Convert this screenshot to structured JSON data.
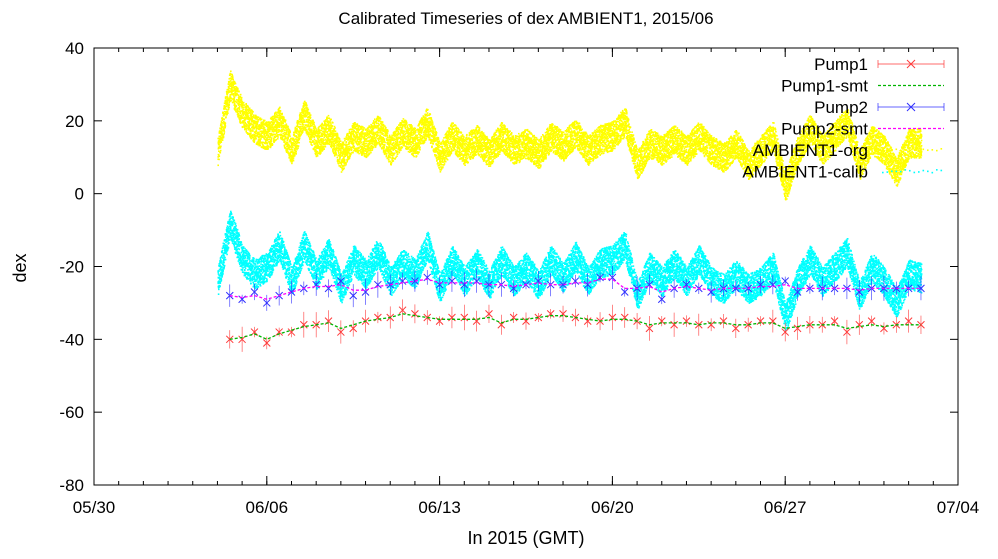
{
  "chart_data": {
    "type": "scatter",
    "title": "Calibrated Timeseries of dex AMBIENT1, 2015/06",
    "xlabel": "In 2015 (GMT)",
    "ylabel": "dex",
    "xlim": [
      "05/30",
      "07/04"
    ],
    "ylim": [
      -80,
      40
    ],
    "x_ticks": [
      "05/30",
      "06/06",
      "06/13",
      "06/20",
      "06/27",
      "07/04"
    ],
    "y_ticks": [
      "40",
      "20",
      "0",
      "-20",
      "-40",
      "-60",
      "-80"
    ],
    "legend_position": "top-right",
    "series": [
      {
        "name": "Pump1",
        "color": "#ff3a3a",
        "marker": "x",
        "errorbars": true,
        "x": [
          "06/04 12:00",
          "06/05 00:00",
          "06/05 12:00",
          "06/06 00:00",
          "06/06 12:00",
          "06/07 00:00",
          "06/07 12:00",
          "06/08 00:00",
          "06/08 12:00",
          "06/09 00:00",
          "06/09 12:00",
          "06/10 00:00",
          "06/10 12:00",
          "06/11 00:00",
          "06/11 12:00",
          "06/12 00:00",
          "06/12 12:00",
          "06/13 00:00",
          "06/13 12:00",
          "06/14 00:00",
          "06/14 12:00",
          "06/15 00:00",
          "06/15 12:00",
          "06/16 00:00",
          "06/16 12:00",
          "06/17 00:00",
          "06/17 12:00",
          "06/18 00:00",
          "06/18 12:00",
          "06/19 00:00",
          "06/19 12:00",
          "06/20 00:00",
          "06/20 12:00",
          "06/21 00:00",
          "06/21 12:00",
          "06/22 00:00",
          "06/22 12:00",
          "06/23 00:00",
          "06/23 12:00",
          "06/24 00:00",
          "06/24 12:00",
          "06/25 00:00",
          "06/25 12:00",
          "06/26 00:00",
          "06/26 12:00",
          "06/27 00:00",
          "06/27 12:00",
          "06/28 00:00",
          "06/28 12:00",
          "06/29 00:00",
          "06/29 12:00",
          "06/30 00:00",
          "06/30 12:00",
          "07/01 00:00",
          "07/01 12:00",
          "07/02 00:00",
          "07/02 12:00"
        ],
        "y": [
          -40,
          -40,
          -38,
          -41,
          -38,
          -38,
          -36,
          -36,
          -35,
          -38,
          -37,
          -35,
          -34,
          -34,
          -32,
          -33,
          -34,
          -35,
          -34,
          -34,
          -35,
          -33,
          -36,
          -34,
          -35,
          -34,
          -33,
          -33,
          -34,
          -35,
          -35,
          -34,
          -34,
          -35,
          -37,
          -35,
          -36,
          -35,
          -36,
          -36,
          -35,
          -37,
          -36,
          -35,
          -35,
          -38,
          -37,
          -36,
          -36,
          -35,
          -38,
          -36,
          -35,
          -37,
          -36,
          -35,
          -36
        ]
      },
      {
        "name": "Pump1-smt",
        "color": "#00b400",
        "dashed": true,
        "x": [
          "06/04 12:00",
          "06/05 00:00",
          "06/05 12:00",
          "06/06 00:00",
          "06/06 12:00",
          "06/07 00:00",
          "06/07 12:00",
          "06/08 00:00",
          "06/08 12:00",
          "06/09 00:00",
          "06/09 12:00",
          "06/10 00:00",
          "06/10 12:00",
          "06/11 00:00",
          "06/11 12:00",
          "06/12 00:00",
          "06/12 12:00",
          "06/13 00:00",
          "06/13 12:00",
          "06/14 00:00",
          "06/14 12:00",
          "06/15 00:00",
          "06/15 12:00",
          "06/16 00:00",
          "06/16 12:00",
          "06/17 00:00",
          "06/17 12:00",
          "06/18 00:00",
          "06/18 12:00",
          "06/19 00:00",
          "06/19 12:00",
          "06/20 00:00",
          "06/20 12:00",
          "06/21 00:00",
          "06/21 12:00",
          "06/22 00:00",
          "06/22 12:00",
          "06/23 00:00",
          "06/23 12:00",
          "06/24 00:00",
          "06/24 12:00",
          "06/25 00:00",
          "06/25 12:00",
          "06/26 00:00",
          "06/26 12:00",
          "06/27 00:00",
          "06/27 12:00",
          "06/28 00:00",
          "06/28 12:00",
          "06/29 00:00",
          "06/29 12:00",
          "06/30 00:00",
          "06/30 12:00",
          "07/01 00:00",
          "07/01 12:00",
          "07/02 00:00",
          "07/02 12:00"
        ],
        "y": [
          -40,
          -39.5,
          -38.5,
          -40,
          -38.5,
          -37.5,
          -36.5,
          -36,
          -35.5,
          -37,
          -36,
          -35,
          -34.5,
          -34,
          -33,
          -33.5,
          -34,
          -34.5,
          -34.5,
          -34.5,
          -34.5,
          -34,
          -35.5,
          -34.5,
          -34.5,
          -34,
          -33.5,
          -33.5,
          -34,
          -34.5,
          -35,
          -34.5,
          -34.5,
          -35,
          -36,
          -35.5,
          -35.5,
          -35.5,
          -36,
          -35.5,
          -35.5,
          -36,
          -36,
          -35.5,
          -35.5,
          -37,
          -36.5,
          -36,
          -36,
          -36,
          -37,
          -36.5,
          -36,
          -36.5,
          -36,
          -36,
          -36
        ]
      },
      {
        "name": "Pump2",
        "color": "#3030ff",
        "marker": "x",
        "errorbars": true,
        "x": [
          "06/04 12:00",
          "06/05 00:00",
          "06/05 12:00",
          "06/06 00:00",
          "06/06 12:00",
          "06/07 00:00",
          "06/07 12:00",
          "06/08 00:00",
          "06/08 12:00",
          "06/09 00:00",
          "06/09 12:00",
          "06/10 00:00",
          "06/10 12:00",
          "06/11 00:00",
          "06/11 12:00",
          "06/12 00:00",
          "06/12 12:00",
          "06/13 00:00",
          "06/13 12:00",
          "06/14 00:00",
          "06/14 12:00",
          "06/15 00:00",
          "06/15 12:00",
          "06/16 00:00",
          "06/16 12:00",
          "06/17 00:00",
          "06/17 12:00",
          "06/18 00:00",
          "06/18 12:00",
          "06/19 00:00",
          "06/19 12:00",
          "06/20 00:00",
          "06/20 12:00",
          "06/21 00:00",
          "06/21 12:00",
          "06/22 00:00",
          "06/22 12:00",
          "06/23 00:00",
          "06/23 12:00",
          "06/24 00:00",
          "06/24 12:00",
          "06/25 00:00",
          "06/25 12:00",
          "06/26 00:00",
          "06/26 12:00",
          "06/27 00:00",
          "06/27 12:00",
          "06/28 00:00",
          "06/28 12:00",
          "06/29 00:00",
          "06/29 12:00",
          "06/30 00:00",
          "06/30 12:00",
          "07/01 00:00",
          "07/01 12:00",
          "07/02 00:00",
          "07/02 12:00"
        ],
        "y": [
          -28,
          -29,
          -27,
          -30,
          -28,
          -27,
          -26,
          -25,
          -26,
          -24,
          -28,
          -27,
          -25,
          -25,
          -24,
          -24,
          -23,
          -25,
          -24,
          -25,
          -24,
          -25,
          -25,
          -26,
          -25,
          -24,
          -25,
          -25,
          -24,
          -25,
          -23,
          -23,
          -27,
          -26,
          -25,
          -29,
          -26,
          -25,
          -26,
          -27,
          -26,
          -26,
          -26,
          -25,
          -25,
          -24,
          -27,
          -26,
          -26,
          -26,
          -26,
          -27,
          -26,
          -26,
          -26,
          -26,
          -26
        ]
      },
      {
        "name": "Pump2-smt",
        "color": "#ff00ff",
        "dashed": true,
        "x": [
          "06/04 12:00",
          "06/05 00:00",
          "06/05 12:00",
          "06/06 00:00",
          "06/06 12:00",
          "06/07 00:00",
          "06/07 12:00",
          "06/08 00:00",
          "06/08 12:00",
          "06/09 00:00",
          "06/09 12:00",
          "06/10 00:00",
          "06/10 12:00",
          "06/11 00:00",
          "06/11 12:00",
          "06/12 00:00",
          "06/12 12:00",
          "06/13 00:00",
          "06/13 12:00",
          "06/14 00:00",
          "06/14 12:00",
          "06/15 00:00",
          "06/15 12:00",
          "06/16 00:00",
          "06/16 12:00",
          "06/17 00:00",
          "06/17 12:00",
          "06/18 00:00",
          "06/18 12:00",
          "06/19 00:00",
          "06/19 12:00",
          "06/20 00:00",
          "06/20 12:00",
          "06/21 00:00",
          "06/21 12:00",
          "06/22 00:00",
          "06/22 12:00",
          "06/23 00:00",
          "06/23 12:00",
          "06/24 00:00",
          "06/24 12:00",
          "06/25 00:00",
          "06/25 12:00",
          "06/26 00:00",
          "06/26 12:00",
          "06/27 00:00",
          "06/27 12:00",
          "06/28 00:00",
          "06/28 12:00",
          "06/29 00:00",
          "06/29 12:00",
          "06/30 00:00",
          "06/30 12:00",
          "07/01 00:00",
          "07/01 12:00",
          "07/02 00:00",
          "07/02 12:00"
        ],
        "y": [
          -28,
          -28.5,
          -28,
          -29,
          -28,
          -27,
          -26,
          -25.5,
          -25.5,
          -25,
          -26.5,
          -26.5,
          -25.5,
          -25,
          -24.5,
          -24,
          -23.5,
          -24.5,
          -24.5,
          -24.5,
          -24.5,
          -25,
          -25,
          -25.5,
          -25,
          -24.5,
          -25,
          -25,
          -24.5,
          -24.5,
          -23.5,
          -23.5,
          -26,
          -26,
          -25.5,
          -27,
          -26,
          -25.5,
          -26,
          -26.5,
          -26,
          -26,
          -26,
          -25.5,
          -25.5,
          -25,
          -26,
          -26,
          -26,
          -26,
          -26,
          -26.5,
          -26,
          -26,
          -26,
          -26,
          -26
        ]
      },
      {
        "name": "AMBIENT1-org",
        "color": "#ffff00",
        "marker": "point",
        "x": [
          "06/04",
          "06/04 12:00",
          "06/05",
          "06/05 12:00",
          "06/06",
          "06/06 12:00",
          "06/07",
          "06/07 12:00",
          "06/08",
          "06/08 12:00",
          "06/09",
          "06/09 12:00",
          "06/10",
          "06/10 12:00",
          "06/11",
          "06/11 12:00",
          "06/12",
          "06/12 12:00",
          "06/13",
          "06/13 12:00",
          "06/14",
          "06/14 12:00",
          "06/15",
          "06/15 12:00",
          "06/16",
          "06/16 12:00",
          "06/17",
          "06/17 12:00",
          "06/18",
          "06/18 12:00",
          "06/19",
          "06/19 12:00",
          "06/20",
          "06/20 12:00",
          "06/21",
          "06/21 12:00",
          "06/22",
          "06/22 12:00",
          "06/23",
          "06/23 12:00",
          "06/24",
          "06/24 12:00",
          "06/25",
          "06/25 12:00",
          "06/26",
          "06/26 12:00",
          "06/27",
          "06/27 12:00",
          "06/28",
          "06/28 12:00",
          "06/29",
          "06/29 12:00",
          "06/30",
          "06/30 12:00",
          "07/01",
          "07/01 12:00",
          "07/02",
          "07/02 12:00"
        ],
        "y": [
          12,
          30,
          22,
          18,
          16,
          20,
          12,
          22,
          14,
          18,
          10,
          16,
          14,
          18,
          12,
          17,
          14,
          20,
          10,
          16,
          12,
          15,
          11,
          16,
          12,
          14,
          11,
          16,
          13,
          17,
          12,
          15,
          16,
          20,
          8,
          14,
          12,
          15,
          12,
          16,
          12,
          10,
          14,
          8,
          12,
          16,
          2,
          12,
          18,
          12,
          16,
          20,
          8,
          15,
          12,
          6,
          14,
          14
        ]
      },
      {
        "name": "AMBIENT1-calib",
        "color": "#00ffff",
        "marker": "point",
        "x": [
          "06/04",
          "06/04 12:00",
          "06/05",
          "06/05 12:00",
          "06/06",
          "06/06 12:00",
          "06/07",
          "06/07 12:00",
          "06/08",
          "06/08 12:00",
          "06/09",
          "06/09 12:00",
          "06/10",
          "06/10 12:00",
          "06/11",
          "06/11 12:00",
          "06/12",
          "06/12 12:00",
          "06/13",
          "06/13 12:00",
          "06/14",
          "06/14 12:00",
          "06/15",
          "06/15 12:00",
          "06/16",
          "06/16 12:00",
          "06/17",
          "06/17 12:00",
          "06/18",
          "06/18 12:00",
          "06/19",
          "06/19 12:00",
          "06/20",
          "06/20 12:00",
          "06/21",
          "06/21 12:00",
          "06/22",
          "06/22 12:00",
          "06/23",
          "06/23 12:00",
          "06/24",
          "06/24 12:00",
          "06/25",
          "06/25 12:00",
          "06/26",
          "06/26 12:00",
          "06/27",
          "06/27 12:00",
          "06/28",
          "06/28 12:00",
          "06/29",
          "06/29 12:00",
          "06/30",
          "06/30 12:00",
          "07/01",
          "07/01 12:00",
          "07/02",
          "07/02 12:00"
        ],
        "y": [
          -24,
          -8,
          -18,
          -22,
          -20,
          -14,
          -24,
          -14,
          -22,
          -16,
          -26,
          -18,
          -22,
          -16,
          -24,
          -19,
          -22,
          -14,
          -26,
          -18,
          -24,
          -19,
          -25,
          -18,
          -24,
          -20,
          -25,
          -18,
          -23,
          -17,
          -24,
          -19,
          -18,
          -14,
          -28,
          -20,
          -24,
          -19,
          -24,
          -18,
          -24,
          -26,
          -22,
          -26,
          -24,
          -20,
          -34,
          -24,
          -18,
          -24,
          -20,
          -16,
          -28,
          -20,
          -24,
          -30,
          -22,
          -23
        ]
      }
    ]
  }
}
